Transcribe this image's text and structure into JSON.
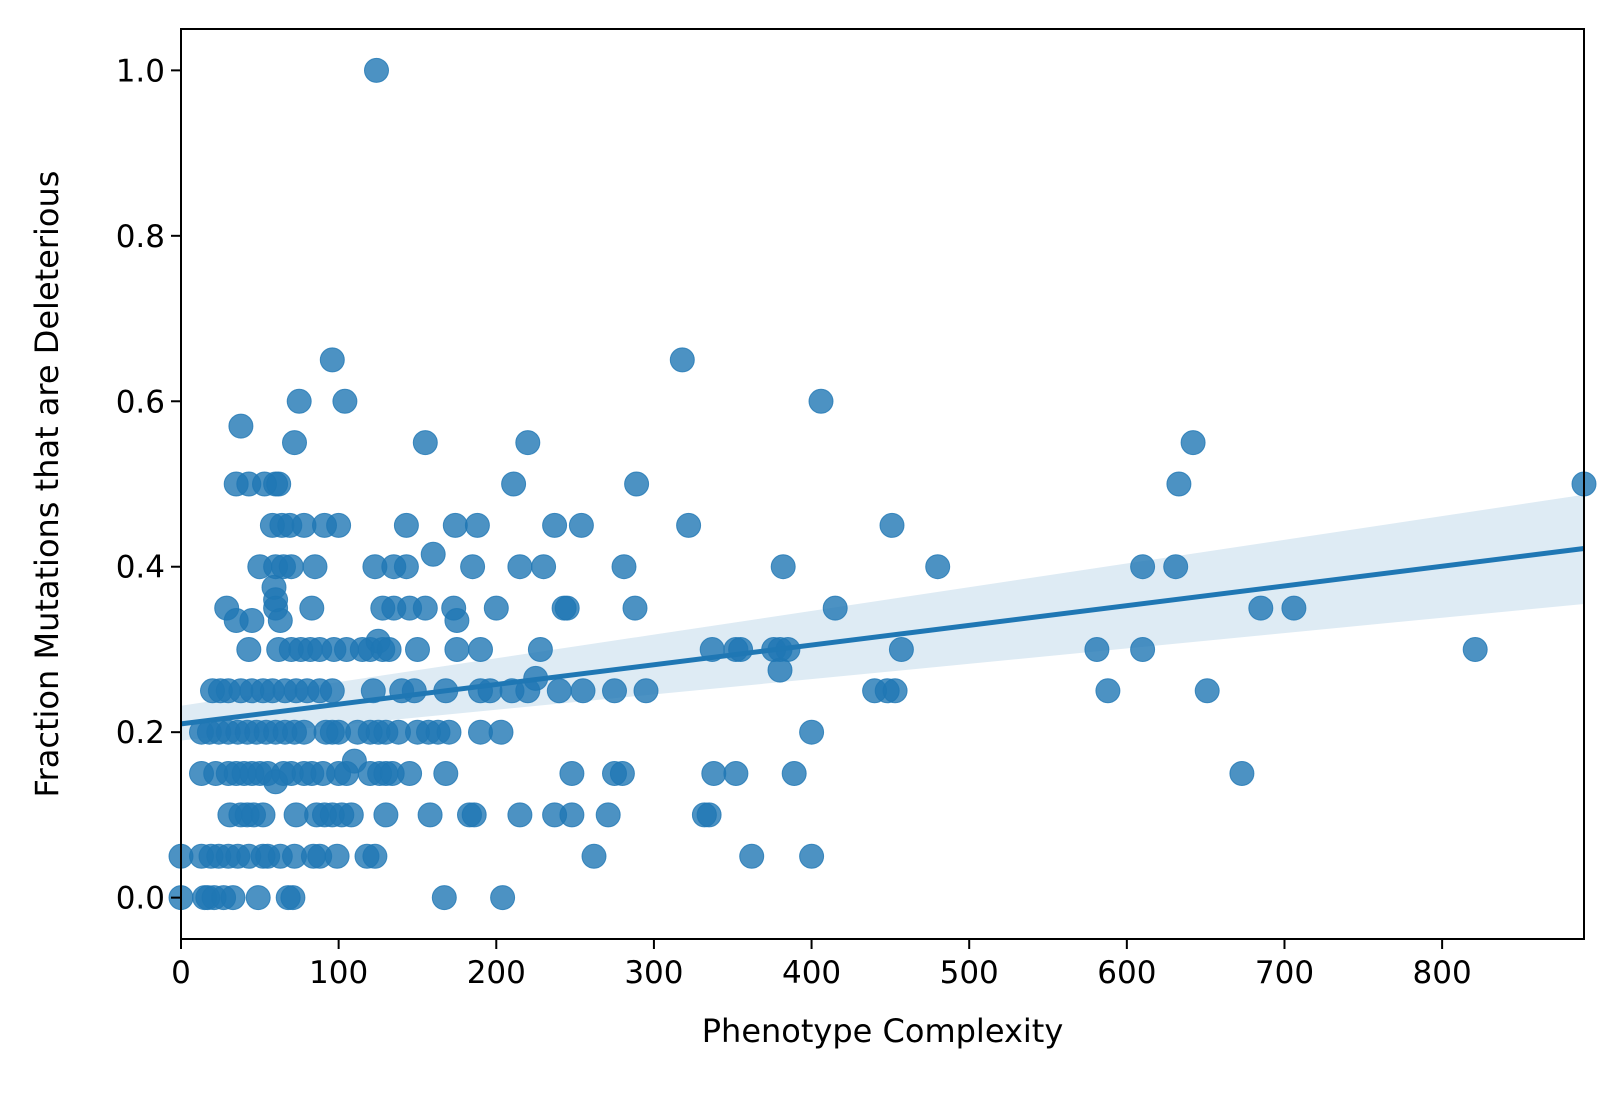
{
  "chart_data": {
    "type": "scatter",
    "title": "",
    "xlabel": "Phenotype Complexity",
    "ylabel": "Fraction Mutations that are Deleterious",
    "xlim": [
      0,
      890
    ],
    "ylim": [
      -0.05,
      1.05
    ],
    "x_ticks": [
      0,
      100,
      200,
      300,
      400,
      500,
      600,
      700,
      800
    ],
    "x_tick_labels": [
      "0",
      "100",
      "200",
      "300",
      "400",
      "500",
      "600",
      "700",
      "800"
    ],
    "y_ticks": [
      0.0,
      0.2,
      0.4,
      0.6,
      0.8,
      1.0
    ],
    "y_tick_labels": [
      "0.0",
      "0.2",
      "0.4",
      "0.6",
      "0.8",
      "1.0"
    ],
    "grid": false,
    "colors": {
      "points": "#1f77b4",
      "fit_line": "#1f77b4",
      "ci_band": "#1f77b4"
    },
    "regression": {
      "x": [
        0,
        890
      ],
      "y": [
        0.21,
        0.422
      ],
      "ci_lower": [
        0.19,
        0.355
      ],
      "ci_upper": [
        0.232,
        0.487
      ]
    },
    "points": [
      [
        0,
        0.0
      ],
      [
        0,
        0.05
      ],
      [
        13,
        0.05
      ],
      [
        15,
        0.0
      ],
      [
        17,
        0.0
      ],
      [
        19,
        0.05
      ],
      [
        21,
        0.0
      ],
      [
        24,
        0.05
      ],
      [
        27,
        0.0
      ],
      [
        30,
        0.05
      ],
      [
        33,
        0.0
      ],
      [
        36,
        0.05
      ],
      [
        43,
        0.05
      ],
      [
        52,
        0.05
      ],
      [
        55,
        0.05
      ],
      [
        63,
        0.05
      ],
      [
        72,
        0.05
      ],
      [
        84,
        0.05
      ],
      [
        88,
        0.05
      ],
      [
        99,
        0.05
      ],
      [
        118,
        0.05
      ],
      [
        123,
        0.05
      ],
      [
        49,
        0.0
      ],
      [
        68,
        0.0
      ],
      [
        71,
        0.0
      ],
      [
        167,
        0.0
      ],
      [
        204,
        0.0
      ],
      [
        31,
        0.1
      ],
      [
        38,
        0.1
      ],
      [
        42,
        0.1
      ],
      [
        46,
        0.1
      ],
      [
        52,
        0.1
      ],
      [
        73,
        0.1
      ],
      [
        86,
        0.1
      ],
      [
        91,
        0.1
      ],
      [
        96,
        0.1
      ],
      [
        102,
        0.1
      ],
      [
        108,
        0.1
      ],
      [
        130,
        0.1
      ],
      [
        158,
        0.1
      ],
      [
        183,
        0.1
      ],
      [
        186,
        0.1
      ],
      [
        215,
        0.1
      ],
      [
        237,
        0.1
      ],
      [
        248,
        0.1
      ],
      [
        271,
        0.1
      ],
      [
        332,
        0.1
      ],
      [
        335,
        0.1
      ],
      [
        13,
        0.15
      ],
      [
        22,
        0.15
      ],
      [
        30,
        0.15
      ],
      [
        35,
        0.15
      ],
      [
        40,
        0.15
      ],
      [
        45,
        0.15
      ],
      [
        50,
        0.15
      ],
      [
        55,
        0.15
      ],
      [
        60,
        0.14
      ],
      [
        65,
        0.15
      ],
      [
        70,
        0.15
      ],
      [
        78,
        0.15
      ],
      [
        83,
        0.15
      ],
      [
        90,
        0.15
      ],
      [
        100,
        0.15
      ],
      [
        105,
        0.15
      ],
      [
        110,
        0.165
      ],
      [
        120,
        0.15
      ],
      [
        126,
        0.15
      ],
      [
        130,
        0.15
      ],
      [
        134,
        0.15
      ],
      [
        145,
        0.15
      ],
      [
        168,
        0.15
      ],
      [
        248,
        0.15
      ],
      [
        275,
        0.15
      ],
      [
        280,
        0.15
      ],
      [
        338,
        0.15
      ],
      [
        352,
        0.15
      ],
      [
        389,
        0.15
      ],
      [
        673,
        0.15
      ],
      [
        13,
        0.2
      ],
      [
        18,
        0.2
      ],
      [
        24,
        0.2
      ],
      [
        30,
        0.2
      ],
      [
        36,
        0.2
      ],
      [
        42,
        0.2
      ],
      [
        48,
        0.2
      ],
      [
        54,
        0.2
      ],
      [
        60,
        0.2
      ],
      [
        66,
        0.2
      ],
      [
        72,
        0.2
      ],
      [
        78,
        0.2
      ],
      [
        92,
        0.2
      ],
      [
        96,
        0.2
      ],
      [
        100,
        0.2
      ],
      [
        112,
        0.2
      ],
      [
        120,
        0.2
      ],
      [
        125,
        0.2
      ],
      [
        130,
        0.2
      ],
      [
        138,
        0.2
      ],
      [
        150,
        0.2
      ],
      [
        157,
        0.2
      ],
      [
        163,
        0.2
      ],
      [
        170,
        0.2
      ],
      [
        190,
        0.2
      ],
      [
        203,
        0.2
      ],
      [
        400,
        0.2
      ],
      [
        20,
        0.25
      ],
      [
        25,
        0.25
      ],
      [
        30,
        0.25
      ],
      [
        38,
        0.25
      ],
      [
        45,
        0.25
      ],
      [
        52,
        0.25
      ],
      [
        58,
        0.25
      ],
      [
        66,
        0.25
      ],
      [
        73,
        0.25
      ],
      [
        80,
        0.25
      ],
      [
        88,
        0.25
      ],
      [
        96,
        0.25
      ],
      [
        122,
        0.25
      ],
      [
        140,
        0.25
      ],
      [
        148,
        0.25
      ],
      [
        168,
        0.25
      ],
      [
        190,
        0.25
      ],
      [
        196,
        0.25
      ],
      [
        210,
        0.25
      ],
      [
        220,
        0.25
      ],
      [
        225,
        0.265
      ],
      [
        240,
        0.25
      ],
      [
        255,
        0.25
      ],
      [
        275,
        0.25
      ],
      [
        295,
        0.25
      ],
      [
        380,
        0.275
      ],
      [
        440,
        0.25
      ],
      [
        448,
        0.25
      ],
      [
        453,
        0.25
      ],
      [
        588,
        0.25
      ],
      [
        651,
        0.25
      ],
      [
        43,
        0.3
      ],
      [
        62,
        0.3
      ],
      [
        70,
        0.3
      ],
      [
        76,
        0.3
      ],
      [
        82,
        0.3
      ],
      [
        88,
        0.3
      ],
      [
        97,
        0.3
      ],
      [
        105,
        0.3
      ],
      [
        115,
        0.3
      ],
      [
        120,
        0.3
      ],
      [
        125,
        0.31
      ],
      [
        128,
        0.3
      ],
      [
        132,
        0.3
      ],
      [
        150,
        0.3
      ],
      [
        175,
        0.3
      ],
      [
        190,
        0.3
      ],
      [
        228,
        0.3
      ],
      [
        337,
        0.3
      ],
      [
        352,
        0.3
      ],
      [
        355,
        0.3
      ],
      [
        376,
        0.3
      ],
      [
        380,
        0.3
      ],
      [
        385,
        0.3
      ],
      [
        457,
        0.3
      ],
      [
        581,
        0.3
      ],
      [
        610,
        0.3
      ],
      [
        821,
        0.3
      ],
      [
        29,
        0.35
      ],
      [
        35,
        0.335
      ],
      [
        45,
        0.335
      ],
      [
        60,
        0.35
      ],
      [
        63,
        0.335
      ],
      [
        83,
        0.35
      ],
      [
        128,
        0.35
      ],
      [
        135,
        0.35
      ],
      [
        145,
        0.35
      ],
      [
        155,
        0.35
      ],
      [
        173,
        0.35
      ],
      [
        175,
        0.335
      ],
      [
        200,
        0.35
      ],
      [
        243,
        0.35
      ],
      [
        245,
        0.35
      ],
      [
        288,
        0.35
      ],
      [
        415,
        0.35
      ],
      [
        685,
        0.35
      ],
      [
        706,
        0.35
      ],
      [
        50,
        0.4
      ],
      [
        60,
        0.4
      ],
      [
        65,
        0.4
      ],
      [
        70,
        0.4
      ],
      [
        85,
        0.4
      ],
      [
        123,
        0.4
      ],
      [
        135,
        0.4
      ],
      [
        143,
        0.4
      ],
      [
        160,
        0.415
      ],
      [
        185,
        0.4
      ],
      [
        215,
        0.4
      ],
      [
        230,
        0.4
      ],
      [
        281,
        0.4
      ],
      [
        382,
        0.4
      ],
      [
        480,
        0.4
      ],
      [
        610,
        0.4
      ],
      [
        631,
        0.4
      ],
      [
        59,
        0.375
      ],
      [
        60,
        0.36
      ],
      [
        58,
        0.45
      ],
      [
        64,
        0.45
      ],
      [
        69,
        0.45
      ],
      [
        78,
        0.45
      ],
      [
        91,
        0.45
      ],
      [
        100,
        0.45
      ],
      [
        143,
        0.45
      ],
      [
        174,
        0.45
      ],
      [
        188,
        0.45
      ],
      [
        237,
        0.45
      ],
      [
        254,
        0.45
      ],
      [
        322,
        0.45
      ],
      [
        451,
        0.45
      ],
      [
        35,
        0.5
      ],
      [
        43,
        0.5
      ],
      [
        53,
        0.5
      ],
      [
        60,
        0.5
      ],
      [
        62,
        0.5
      ],
      [
        211,
        0.5
      ],
      [
        289,
        0.5
      ],
      [
        633,
        0.5
      ],
      [
        890,
        0.5
      ],
      [
        72,
        0.55
      ],
      [
        155,
        0.55
      ],
      [
        220,
        0.55
      ],
      [
        642,
        0.55
      ],
      [
        38,
        0.57
      ],
      [
        75,
        0.6
      ],
      [
        104,
        0.6
      ],
      [
        406,
        0.6
      ],
      [
        96,
        0.65
      ],
      [
        318,
        0.65
      ],
      [
        124,
        1.0
      ],
      [
        362,
        0.05
      ],
      [
        400,
        0.05
      ],
      [
        262,
        0.05
      ]
    ]
  }
}
